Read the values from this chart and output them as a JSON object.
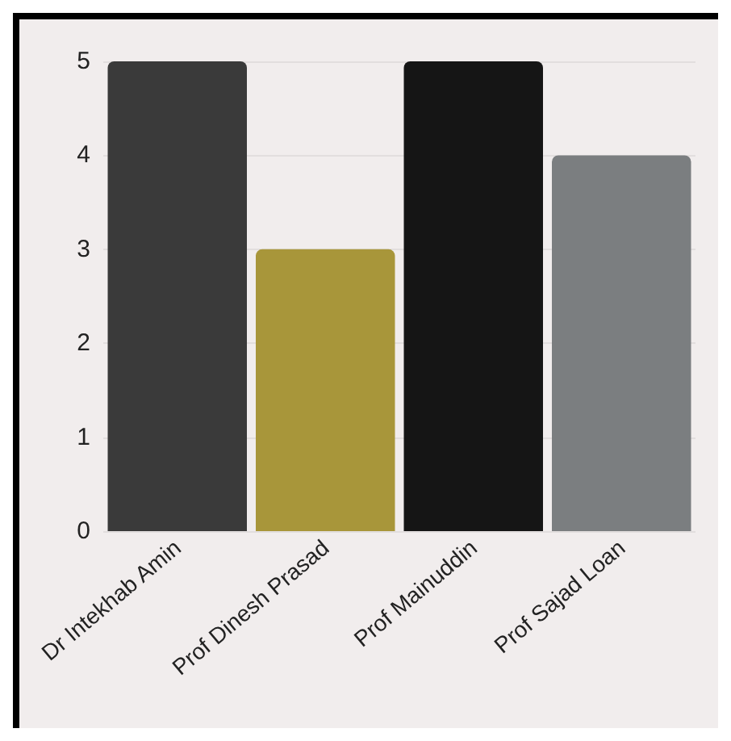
{
  "chart_data": {
    "type": "bar",
    "categories": [
      "Dr Intekhab Amin",
      "Prof Dinesh Prasad",
      "Prof Mainuddin",
      "Prof Sajad Loan"
    ],
    "values": [
      5,
      3,
      5,
      4
    ],
    "colors": [
      "#3a3a3a",
      "#a8963a",
      "#151515",
      "#7b7e80"
    ],
    "ylim": [
      0,
      5
    ],
    "yticks": [
      0,
      1,
      2,
      3,
      4,
      5
    ],
    "grid": "y"
  }
}
